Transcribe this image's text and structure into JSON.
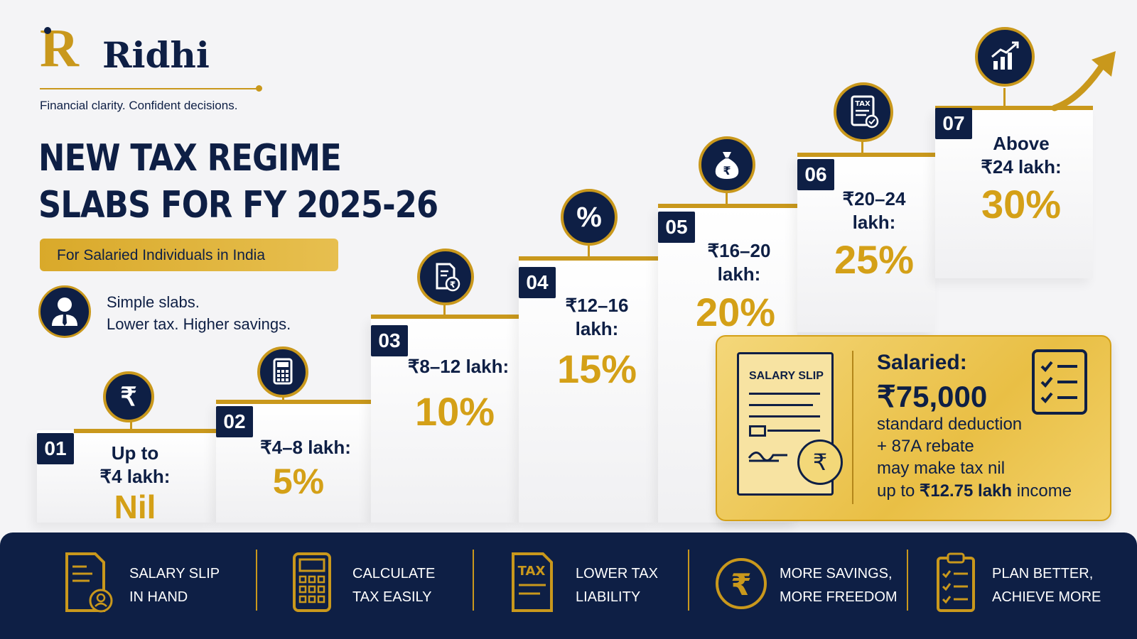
{
  "brand": {
    "name": "Ridhi",
    "logo_letter": "R",
    "tagline": "Financial clarity. Confident decisions."
  },
  "title": {
    "line1": "NEW TAX REGIME",
    "line2": "SLABS FOR FY 2025-26"
  },
  "subtitle": "For Salaried Individuals in India",
  "tagline2": {
    "line1": "Simple slabs.",
    "line2": "Lower tax. Higher savings."
  },
  "slabs": [
    {
      "num": "01",
      "range_l1": "Up to",
      "range_l2": "₹4 lakh:",
      "rate": "Nil",
      "icon": "rupee-icon"
    },
    {
      "num": "02",
      "range_l1": "₹4–8 lakh:",
      "range_l2": "",
      "rate": "5%",
      "icon": "calculator-icon"
    },
    {
      "num": "03",
      "range_l1": "₹8–12 lakh:",
      "range_l2": "",
      "rate": "10%",
      "icon": "document-rupee-icon"
    },
    {
      "num": "04",
      "range_l1": "₹12–16",
      "range_l2": "lakh:",
      "rate": "15%",
      "icon": "percent-icon"
    },
    {
      "num": "05",
      "range_l1": "₹16–20",
      "range_l2": "lakh:",
      "rate": "20%",
      "icon": "money-bag-icon"
    },
    {
      "num": "06",
      "range_l1": "₹20–24",
      "range_l2": "lakh:",
      "rate": "25%",
      "icon": "tax-document-icon"
    },
    {
      "num": "07",
      "range_l1": "Above",
      "range_l2": "₹24 lakh:",
      "rate": "30%",
      "icon": "growth-chart-icon"
    }
  ],
  "callout": {
    "slip_label": "SALARY SLIP",
    "heading": "Salaried:",
    "amount": "₹75,000",
    "line1": "standard deduction",
    "line2": "+ 87A rebate",
    "line3": "may make tax nil",
    "line4_pre": "up to ",
    "line4_bold": "₹12.75 lakh",
    "line4_post": " income"
  },
  "footer": [
    {
      "l1": "SALARY SLIP",
      "l2": "IN HAND",
      "icon": "salary-slip-person-icon"
    },
    {
      "l1": "CALCULATE",
      "l2": "TAX EASILY",
      "icon": "calculator-icon"
    },
    {
      "l1": "LOWER TAX",
      "l2": "LIABILITY",
      "icon": "tax-document-icon"
    },
    {
      "l1": "MORE SAVINGS,",
      "l2": "MORE FREEDOM",
      "icon": "rupee-coin-icon"
    },
    {
      "l1": "PLAN BETTER,",
      "l2": "ACHIEVE MORE",
      "icon": "checklist-clipboard-icon"
    }
  ],
  "colors": {
    "navy": "#0e1f45",
    "gold": "#d4a017",
    "background": "#f4f4f6"
  }
}
